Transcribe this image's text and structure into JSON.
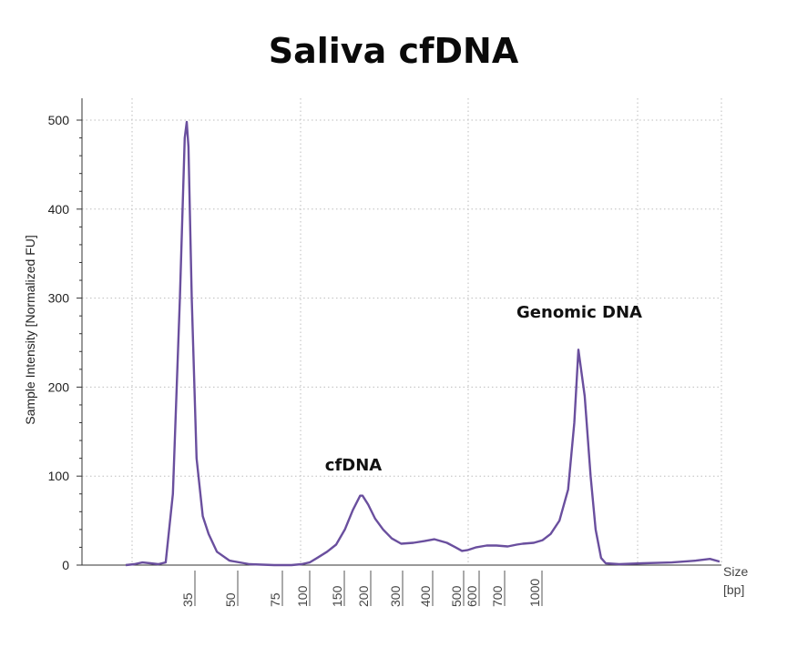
{
  "chart_data": {
    "type": "line",
    "title": "Saliva cfDNA",
    "ylabel": "Sample Intensity [Normalized FU]",
    "xlabel": [
      "Size",
      "[bp]"
    ],
    "ylim": [
      0,
      500
    ],
    "yticks": [
      0,
      100,
      200,
      300,
      400,
      500
    ],
    "x_scale": "non-linear ladder (bp)",
    "xticks": [
      "35",
      "50",
      "75",
      "100",
      "150",
      "200",
      "300",
      "400",
      "500",
      "600",
      "700",
      "1000"
    ],
    "grid": "dotted",
    "line_color": "#6a4f9e",
    "annotations": [
      {
        "text": "cfDNA",
        "near_bp": 200
      },
      {
        "text": "Genomic DNA",
        "near_bp": "> 1000"
      }
    ],
    "series": [
      {
        "values_note": "x in bp (ladder-interpolated), y in normalized FU",
        "points": [
          [
            27,
            0
          ],
          [
            28,
            1
          ],
          [
            29,
            3
          ],
          [
            30,
            2
          ],
          [
            31,
            1
          ],
          [
            32,
            3
          ],
          [
            33,
            80
          ],
          [
            34,
            300
          ],
          [
            34.7,
            480
          ],
          [
            35,
            498
          ],
          [
            35.5,
            470
          ],
          [
            36.5,
            300
          ],
          [
            38,
            120
          ],
          [
            40,
            55
          ],
          [
            42,
            35
          ],
          [
            45,
            15
          ],
          [
            50,
            5
          ],
          [
            60,
            1
          ],
          [
            75,
            0
          ],
          [
            90,
            0
          ],
          [
            100,
            1
          ],
          [
            110,
            3
          ],
          [
            120,
            8
          ],
          [
            135,
            15
          ],
          [
            150,
            23
          ],
          [
            165,
            40
          ],
          [
            180,
            62
          ],
          [
            195,
            78
          ],
          [
            200,
            78
          ],
          [
            215,
            68
          ],
          [
            235,
            52
          ],
          [
            260,
            40
          ],
          [
            290,
            30
          ],
          [
            320,
            24
          ],
          [
            360,
            25
          ],
          [
            400,
            27
          ],
          [
            430,
            29
          ],
          [
            470,
            25
          ],
          [
            500,
            20
          ],
          [
            540,
            16
          ],
          [
            580,
            17
          ],
          [
            620,
            20
          ],
          [
            660,
            22
          ],
          [
            700,
            22
          ],
          [
            780,
            21
          ],
          [
            850,
            23
          ],
          [
            900,
            24
          ],
          [
            1000,
            25
          ],
          [
            1100,
            28
          ],
          [
            1200,
            35
          ],
          [
            1320,
            50
          ],
          [
            1450,
            85
          ],
          [
            1550,
            160
          ],
          [
            1620,
            242
          ],
          [
            1700,
            190
          ],
          [
            1780,
            100
          ],
          [
            1850,
            40
          ],
          [
            1930,
            8
          ],
          [
            2000,
            2
          ],
          [
            2200,
            1
          ],
          [
            2600,
            2
          ],
          [
            3200,
            3
          ],
          [
            3800,
            5
          ],
          [
            4200,
            7
          ],
          [
            4500,
            4
          ]
        ]
      }
    ]
  }
}
